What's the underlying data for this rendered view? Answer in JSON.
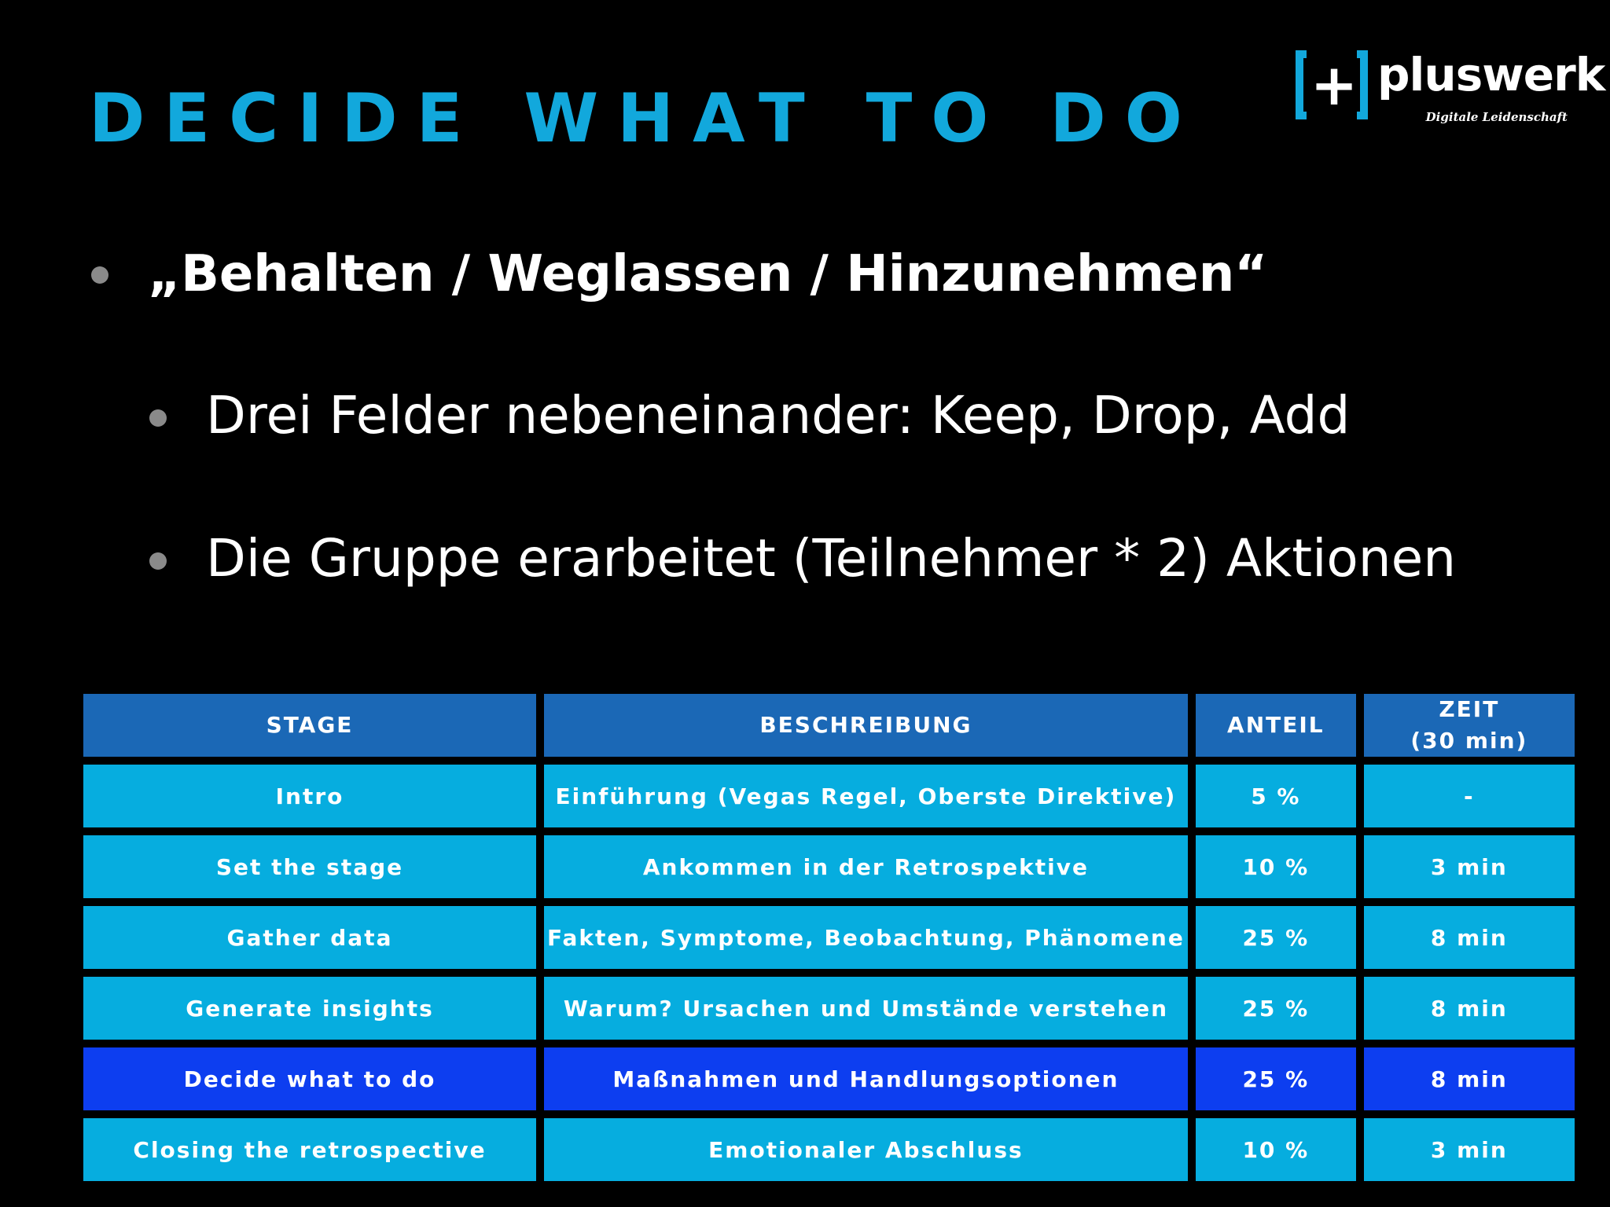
{
  "slide": {
    "title": "DECIDE WHAT TO DO"
  },
  "logo": {
    "plus": "+",
    "word": "pluswerk",
    "tagline": "Digitale Leidenschaft"
  },
  "bullets": [
    {
      "text": "„Behalten / Weglassen / Hinzunehmen“",
      "level": 1
    },
    {
      "text": "Drei Felder nebeneinander: Keep, Drop, Add",
      "level": 2
    },
    {
      "text": "Die Gruppe erarbeitet (Teilnehmer * 2) Aktionen",
      "level": 2
    }
  ],
  "table": {
    "headers": {
      "stage": "STAGE",
      "description": "BESCHREIBUNG",
      "share": "ANTEIL",
      "time_line1": "ZEIT",
      "time_line2": "(30 min)"
    },
    "rows": [
      {
        "stage": "Intro",
        "description": "Einführung (Vegas Regel, Oberste Direktive)",
        "share": "5 %",
        "time": "-"
      },
      {
        "stage": "Set the stage",
        "description": "Ankommen in der Retrospektive",
        "share": "10 %",
        "time": "3 min"
      },
      {
        "stage": "Gather data",
        "description": "Fakten, Symptome, Beobachtung, Phänomene",
        "share": "25 %",
        "time": "8 min"
      },
      {
        "stage": "Generate insights",
        "description": "Warum? Ursachen und Umstände verstehen",
        "share": "25 %",
        "time": "8 min"
      },
      {
        "stage": "Decide what to do",
        "description": "Maßnahmen und Handlungsoptionen",
        "share": "25 %",
        "time": "8 min"
      },
      {
        "stage": "Closing the retrospective",
        "description": "Emotionaler Abschluss",
        "share": "10 %",
        "time": "3 min"
      }
    ],
    "highlighted_row": "Decide what to do"
  },
  "colors": {
    "background": "#000000",
    "title": "#12A8DC",
    "header_cell": "#1B68B6",
    "body_cell": "#06ADDF",
    "highlight_cell": "#0D3EF0",
    "bullet": "#8a8a8a"
  }
}
